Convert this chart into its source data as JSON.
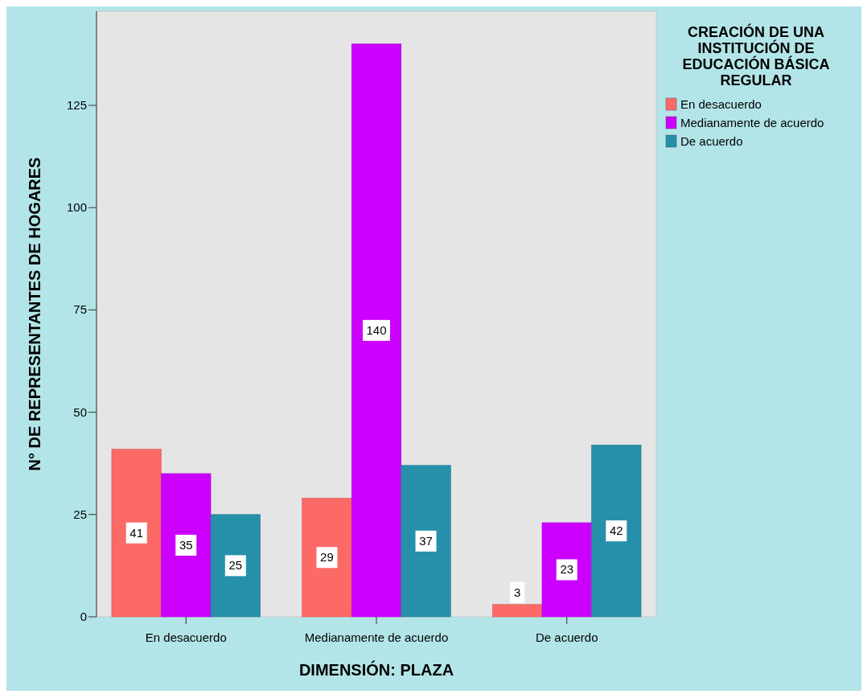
{
  "chart_data": {
    "type": "bar",
    "xlabel": "DIMENSIÓN: PLAZA",
    "ylabel": "N° DE REPRESENTANTES DE HOGARES",
    "legend_title": "CREACIÓN DE UNA INSTITUCIÓN DE EDUCACIÓN BÁSICA REGULAR",
    "categories": [
      "En desacuerdo",
      "Medianamente de acuerdo",
      "De acuerdo"
    ],
    "series": [
      {
        "name": "En desacuerdo",
        "color": "#fb6a67",
        "values": [
          41,
          29,
          3
        ]
      },
      {
        "name": "Medianamente de acuerdo",
        "color": "#cc00ff",
        "values": [
          35,
          140,
          23
        ]
      },
      {
        "name": "De acuerdo",
        "color": "#2690ab",
        "values": [
          25,
          37,
          42
        ]
      }
    ],
    "ylim": [
      0,
      148
    ],
    "yticks": [
      0,
      25,
      50,
      75,
      100,
      125
    ],
    "data_labels": true,
    "legend": "top right",
    "grid": false
  }
}
